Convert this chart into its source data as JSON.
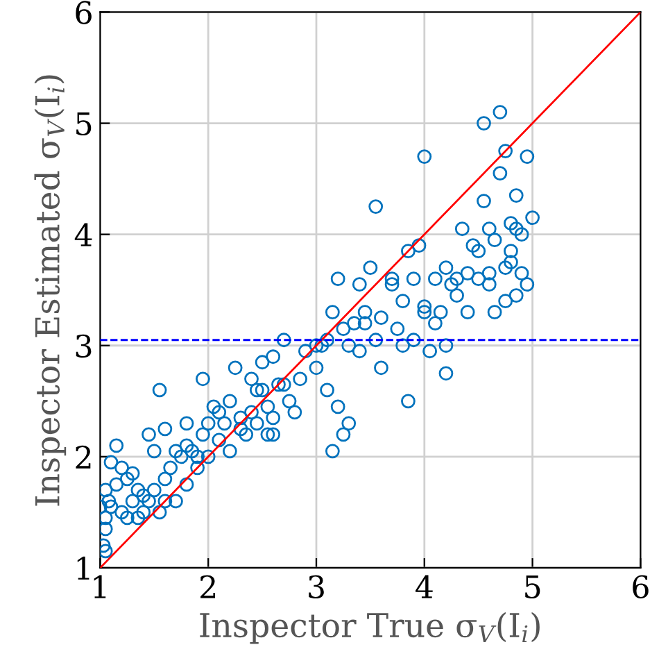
{
  "chart_data": {
    "type": "scatter",
    "xlabel": "Inspector True σ$_{V}$(I$_{i}$)",
    "ylabel": "Inspector Estimated σ$_{V}$(I$_{i}$)",
    "xlim": [
      1,
      6
    ],
    "ylim": [
      1,
      6
    ],
    "xticks": [
      1,
      2,
      3,
      4,
      5,
      6
    ],
    "yticks": [
      1,
      2,
      3,
      4,
      5,
      6
    ],
    "grid": true,
    "marker": "circle",
    "ref_lines": [
      {
        "axis": "y",
        "value": 3.05,
        "color": "#0000ff",
        "line_style": "dashed"
      }
    ],
    "series": [
      {
        "color": "#0072bd",
        "x": [
          1.0,
          1.03,
          1.05,
          1.05,
          1.05,
          1.08,
          1.1,
          1.05,
          1.1,
          1.15,
          1.2,
          1.25,
          1.3,
          1.2,
          1.3,
          1.35,
          1.4,
          1.45,
          1.5,
          1.55,
          1.55,
          1.6,
          1.65,
          1.7,
          1.75,
          1.8,
          1.85,
          1.9,
          1.95,
          1.95,
          2.0,
          2.0,
          2.05,
          2.1,
          1.45,
          1.6,
          1.35,
          1.25,
          1.4,
          1.15,
          1.8,
          1.7,
          1.5,
          1.6,
          1.8,
          1.9,
          2.15,
          2.2,
          2.25,
          2.3,
          2.4,
          2.4,
          2.45,
          2.5,
          2.55,
          2.6,
          2.65,
          2.7,
          2.75,
          2.8,
          2.55,
          2.35,
          2.2,
          2.1,
          2.3,
          2.5,
          2.6,
          2.45,
          2.9,
          2.85,
          2.6,
          2.7,
          3.0,
          3.05,
          3.1,
          3.15,
          3.2,
          3.25,
          3.2,
          3.25,
          3.15,
          3.3,
          3.3,
          3.4,
          3.45,
          3.5,
          3.55,
          3.55,
          3.6,
          3.6,
          3.7,
          3.75,
          3.8,
          3.8,
          3.85,
          3.85,
          3.9,
          3.95,
          4.0,
          4.0,
          4.0,
          4.05,
          4.1,
          4.2,
          4.2,
          3.1,
          3.0,
          3.35,
          3.45,
          3.7,
          3.4,
          3.9,
          4.15,
          4.1,
          4.2,
          4.25,
          4.3,
          4.35,
          4.4,
          4.45,
          4.5,
          4.55,
          4.55,
          4.6,
          4.65,
          4.65,
          4.7,
          4.7,
          4.75,
          4.75,
          4.8,
          4.8,
          4.85,
          4.9,
          4.9,
          4.95,
          5.0,
          4.85,
          4.6,
          4.75,
          4.5,
          4.4,
          4.95,
          4.8,
          4.85,
          4.3,
          4.6
        ],
        "values": [
          1.55,
          1.2,
          1.15,
          1.35,
          1.45,
          1.6,
          1.55,
          1.7,
          1.95,
          2.1,
          1.9,
          1.8,
          1.85,
          1.5,
          1.6,
          1.7,
          1.5,
          1.6,
          1.7,
          1.5,
          2.6,
          1.8,
          1.9,
          1.6,
          2.0,
          1.75,
          2.05,
          1.9,
          2.2,
          2.7,
          2.0,
          2.3,
          2.45,
          2.15,
          2.2,
          1.6,
          1.45,
          1.45,
          1.65,
          1.75,
          2.3,
          2.05,
          2.05,
          2.25,
          2.1,
          2.0,
          2.3,
          2.05,
          2.8,
          2.35,
          2.4,
          2.7,
          2.3,
          2.85,
          2.45,
          2.35,
          2.65,
          3.05,
          2.5,
          2.4,
          2.2,
          2.2,
          2.5,
          2.4,
          2.25,
          2.6,
          2.9,
          2.6,
          2.95,
          2.7,
          2.2,
          2.65,
          2.8,
          3.0,
          3.05,
          3.3,
          3.6,
          3.15,
          2.45,
          2.2,
          2.05,
          2.3,
          3.0,
          2.95,
          3.3,
          3.7,
          4.25,
          3.05,
          2.8,
          3.25,
          3.55,
          3.15,
          3.4,
          3.0,
          2.5,
          3.85,
          3.6,
          3.9,
          3.35,
          4.7,
          3.3,
          2.95,
          3.6,
          2.75,
          3.0,
          2.6,
          3.0,
          3.2,
          3.2,
          3.6,
          3.55,
          3.05,
          3.3,
          3.2,
          3.7,
          3.55,
          3.45,
          4.05,
          3.65,
          3.9,
          3.6,
          4.3,
          5.0,
          3.55,
          3.95,
          3.3,
          4.55,
          5.1,
          4.75,
          3.4,
          4.1,
          3.85,
          4.35,
          4.0,
          3.65,
          4.7,
          4.15,
          3.45,
          3.65,
          3.7,
          3.85,
          3.3,
          3.55,
          3.75,
          4.05,
          3.6,
          4.05
        ]
      },
      {
        "type": "line",
        "color": "#ff0000",
        "marker": "none",
        "line_style": "solid",
        "x": [
          1,
          6
        ],
        "values": [
          1,
          6
        ]
      }
    ]
  }
}
